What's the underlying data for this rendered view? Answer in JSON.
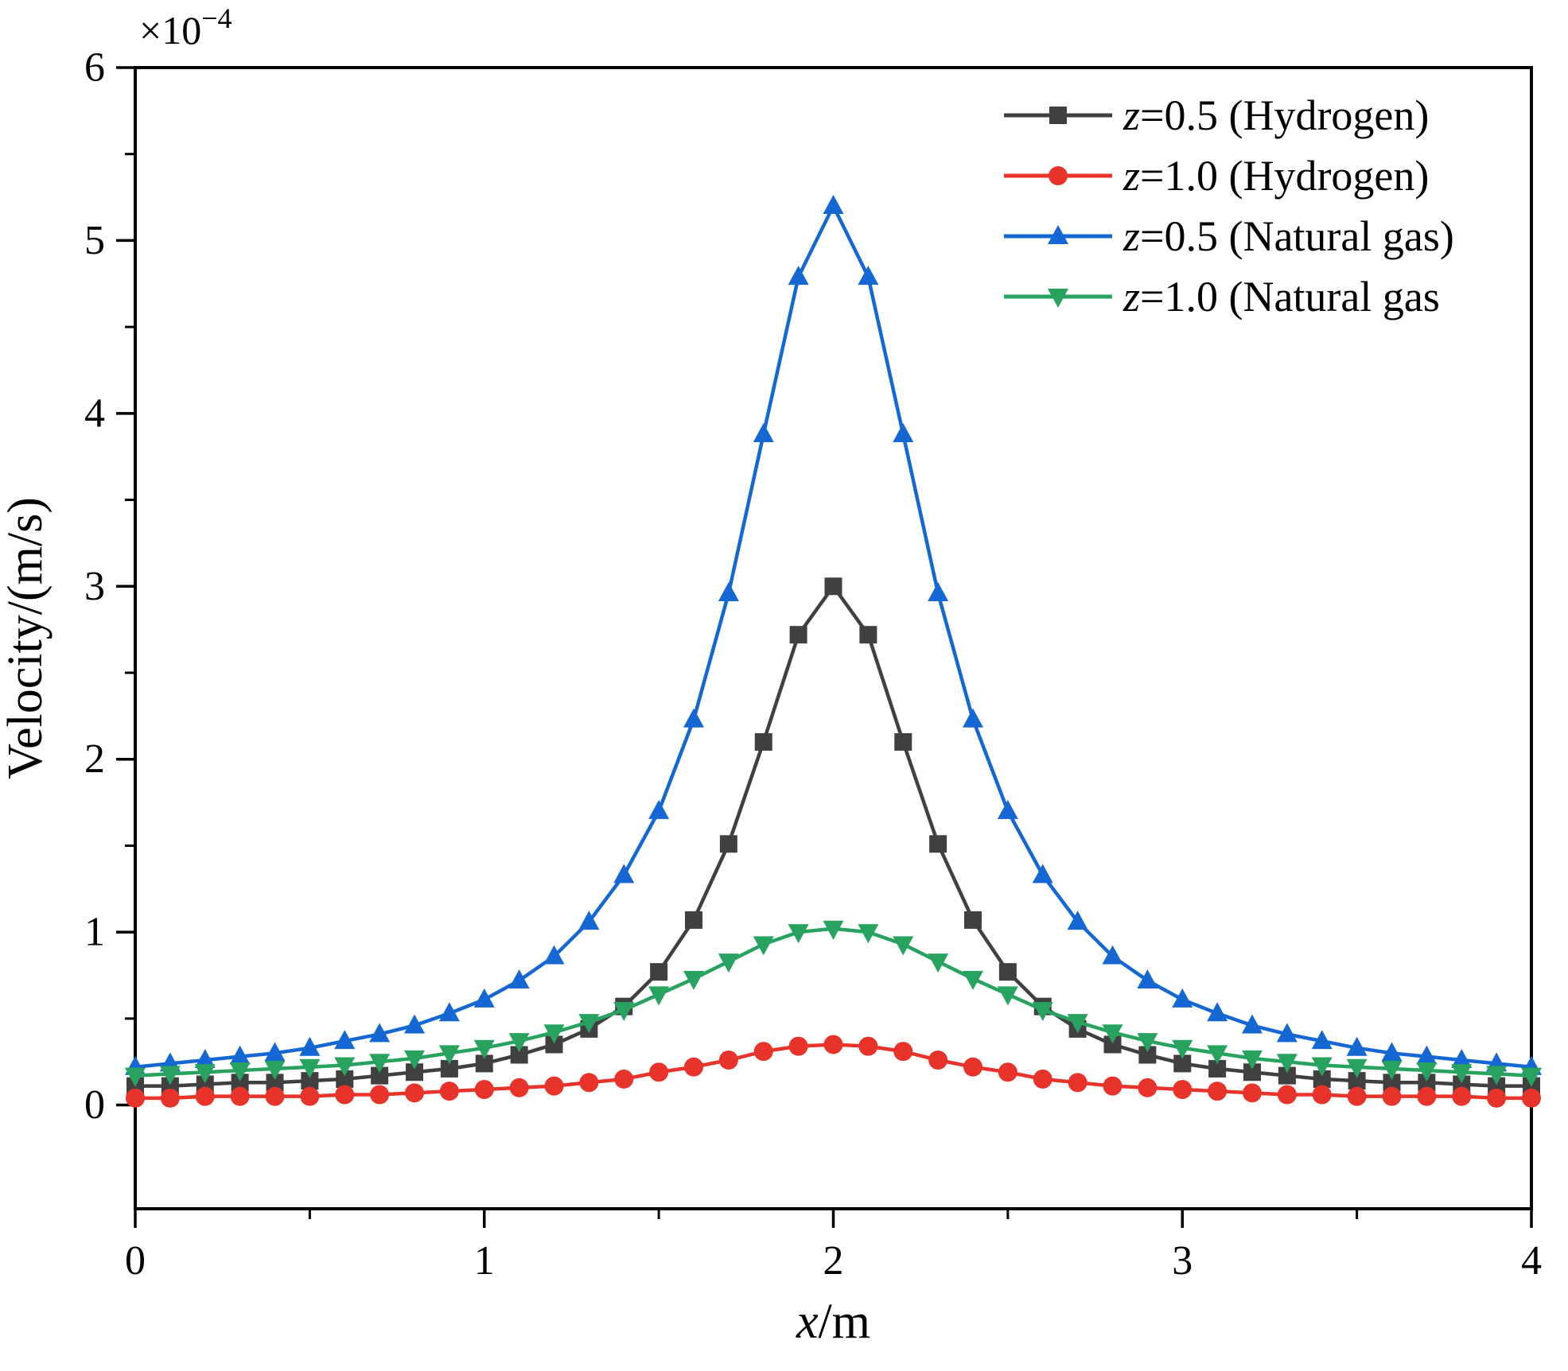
{
  "figure": {
    "ylabel": "Velocity/(m/s)",
    "xlabel": "x/m",
    "y_offset_base": "×10",
    "y_offset_exp": "−4"
  },
  "chart_data": {
    "type": "line",
    "title": "",
    "xlabel": "x/m",
    "ylabel": "Velocity/(m/s)",
    "y_offset_label": "×10⁻⁴",
    "xlim": [
      0,
      4
    ],
    "ylim": [
      -0.6,
      6
    ],
    "x_major_ticks": [
      0,
      1,
      2,
      3,
      4
    ],
    "y_major_ticks": [
      0,
      1,
      2,
      3,
      4,
      5,
      6
    ],
    "x_minor_ticks": [
      0.5,
      1.5,
      2.5,
      3.5
    ],
    "y_minor_ticks": [
      0.5,
      1.5,
      2.5,
      3.5,
      4.5,
      5.5
    ],
    "grid": false,
    "legend_position": "top-right-inside",
    "x": [
      0,
      0.1,
      0.2,
      0.3,
      0.4,
      0.5,
      0.6,
      0.7,
      0.8,
      0.9,
      1,
      1.1,
      1.2,
      1.3,
      1.4,
      1.5,
      1.6,
      1.7,
      1.8,
      1.9,
      2,
      2.1,
      2.2,
      2.3,
      2.4,
      2.5,
      2.6,
      2.7,
      2.8,
      2.9,
      3,
      3.1,
      3.2,
      3.3,
      3.4,
      3.5,
      3.6,
      3.7,
      3.8,
      3.9,
      4
    ],
    "series": [
      {
        "name": "z=0.5 (Hydrogen)",
        "color": "#404040",
        "marker": "square",
        "values": [
          0.11,
          0.11,
          0.12,
          0.13,
          0.13,
          0.14,
          0.15,
          0.17,
          0.19,
          0.21,
          0.24,
          0.29,
          0.35,
          0.44,
          0.57,
          0.77,
          1.07,
          1.51,
          2.1,
          2.72,
          3.0,
          2.72,
          2.1,
          1.51,
          1.07,
          0.77,
          0.57,
          0.44,
          0.35,
          0.29,
          0.24,
          0.21,
          0.19,
          0.17,
          0.15,
          0.14,
          0.13,
          0.13,
          0.12,
          0.11,
          0.11
        ]
      },
      {
        "name": "z=1.0 (Hydrogen)",
        "color": "#e8332b",
        "marker": "circle",
        "values": [
          0.04,
          0.04,
          0.05,
          0.05,
          0.05,
          0.05,
          0.06,
          0.06,
          0.07,
          0.08,
          0.09,
          0.1,
          0.11,
          0.13,
          0.15,
          0.19,
          0.22,
          0.26,
          0.31,
          0.34,
          0.35,
          0.34,
          0.31,
          0.26,
          0.22,
          0.19,
          0.15,
          0.13,
          0.11,
          0.1,
          0.09,
          0.08,
          0.07,
          0.06,
          0.06,
          0.05,
          0.05,
          0.05,
          0.05,
          0.04,
          0.04
        ]
      },
      {
        "name": "z=0.5 (Natural gas)",
        "color": "#1567d3",
        "marker": "triangle-up",
        "values": [
          0.22,
          0.24,
          0.26,
          0.28,
          0.3,
          0.33,
          0.37,
          0.41,
          0.46,
          0.53,
          0.61,
          0.72,
          0.86,
          1.06,
          1.33,
          1.7,
          2.23,
          2.96,
          3.88,
          4.79,
          5.2,
          4.79,
          3.88,
          2.96,
          2.23,
          1.7,
          1.33,
          1.06,
          0.86,
          0.72,
          0.61,
          0.53,
          0.46,
          0.41,
          0.37,
          0.33,
          0.3,
          0.28,
          0.26,
          0.24,
          0.22
        ]
      },
      {
        "name": "z=1.0 (Natural gas",
        "color": "#27a35f",
        "marker": "triangle-down",
        "values": [
          0.17,
          0.18,
          0.19,
          0.2,
          0.21,
          0.22,
          0.23,
          0.25,
          0.27,
          0.3,
          0.33,
          0.37,
          0.42,
          0.48,
          0.55,
          0.64,
          0.73,
          0.83,
          0.93,
          1.0,
          1.02,
          1.0,
          0.93,
          0.83,
          0.73,
          0.64,
          0.55,
          0.48,
          0.42,
          0.37,
          0.33,
          0.3,
          0.27,
          0.25,
          0.23,
          0.22,
          0.21,
          0.2,
          0.19,
          0.18,
          0.17
        ]
      }
    ]
  }
}
